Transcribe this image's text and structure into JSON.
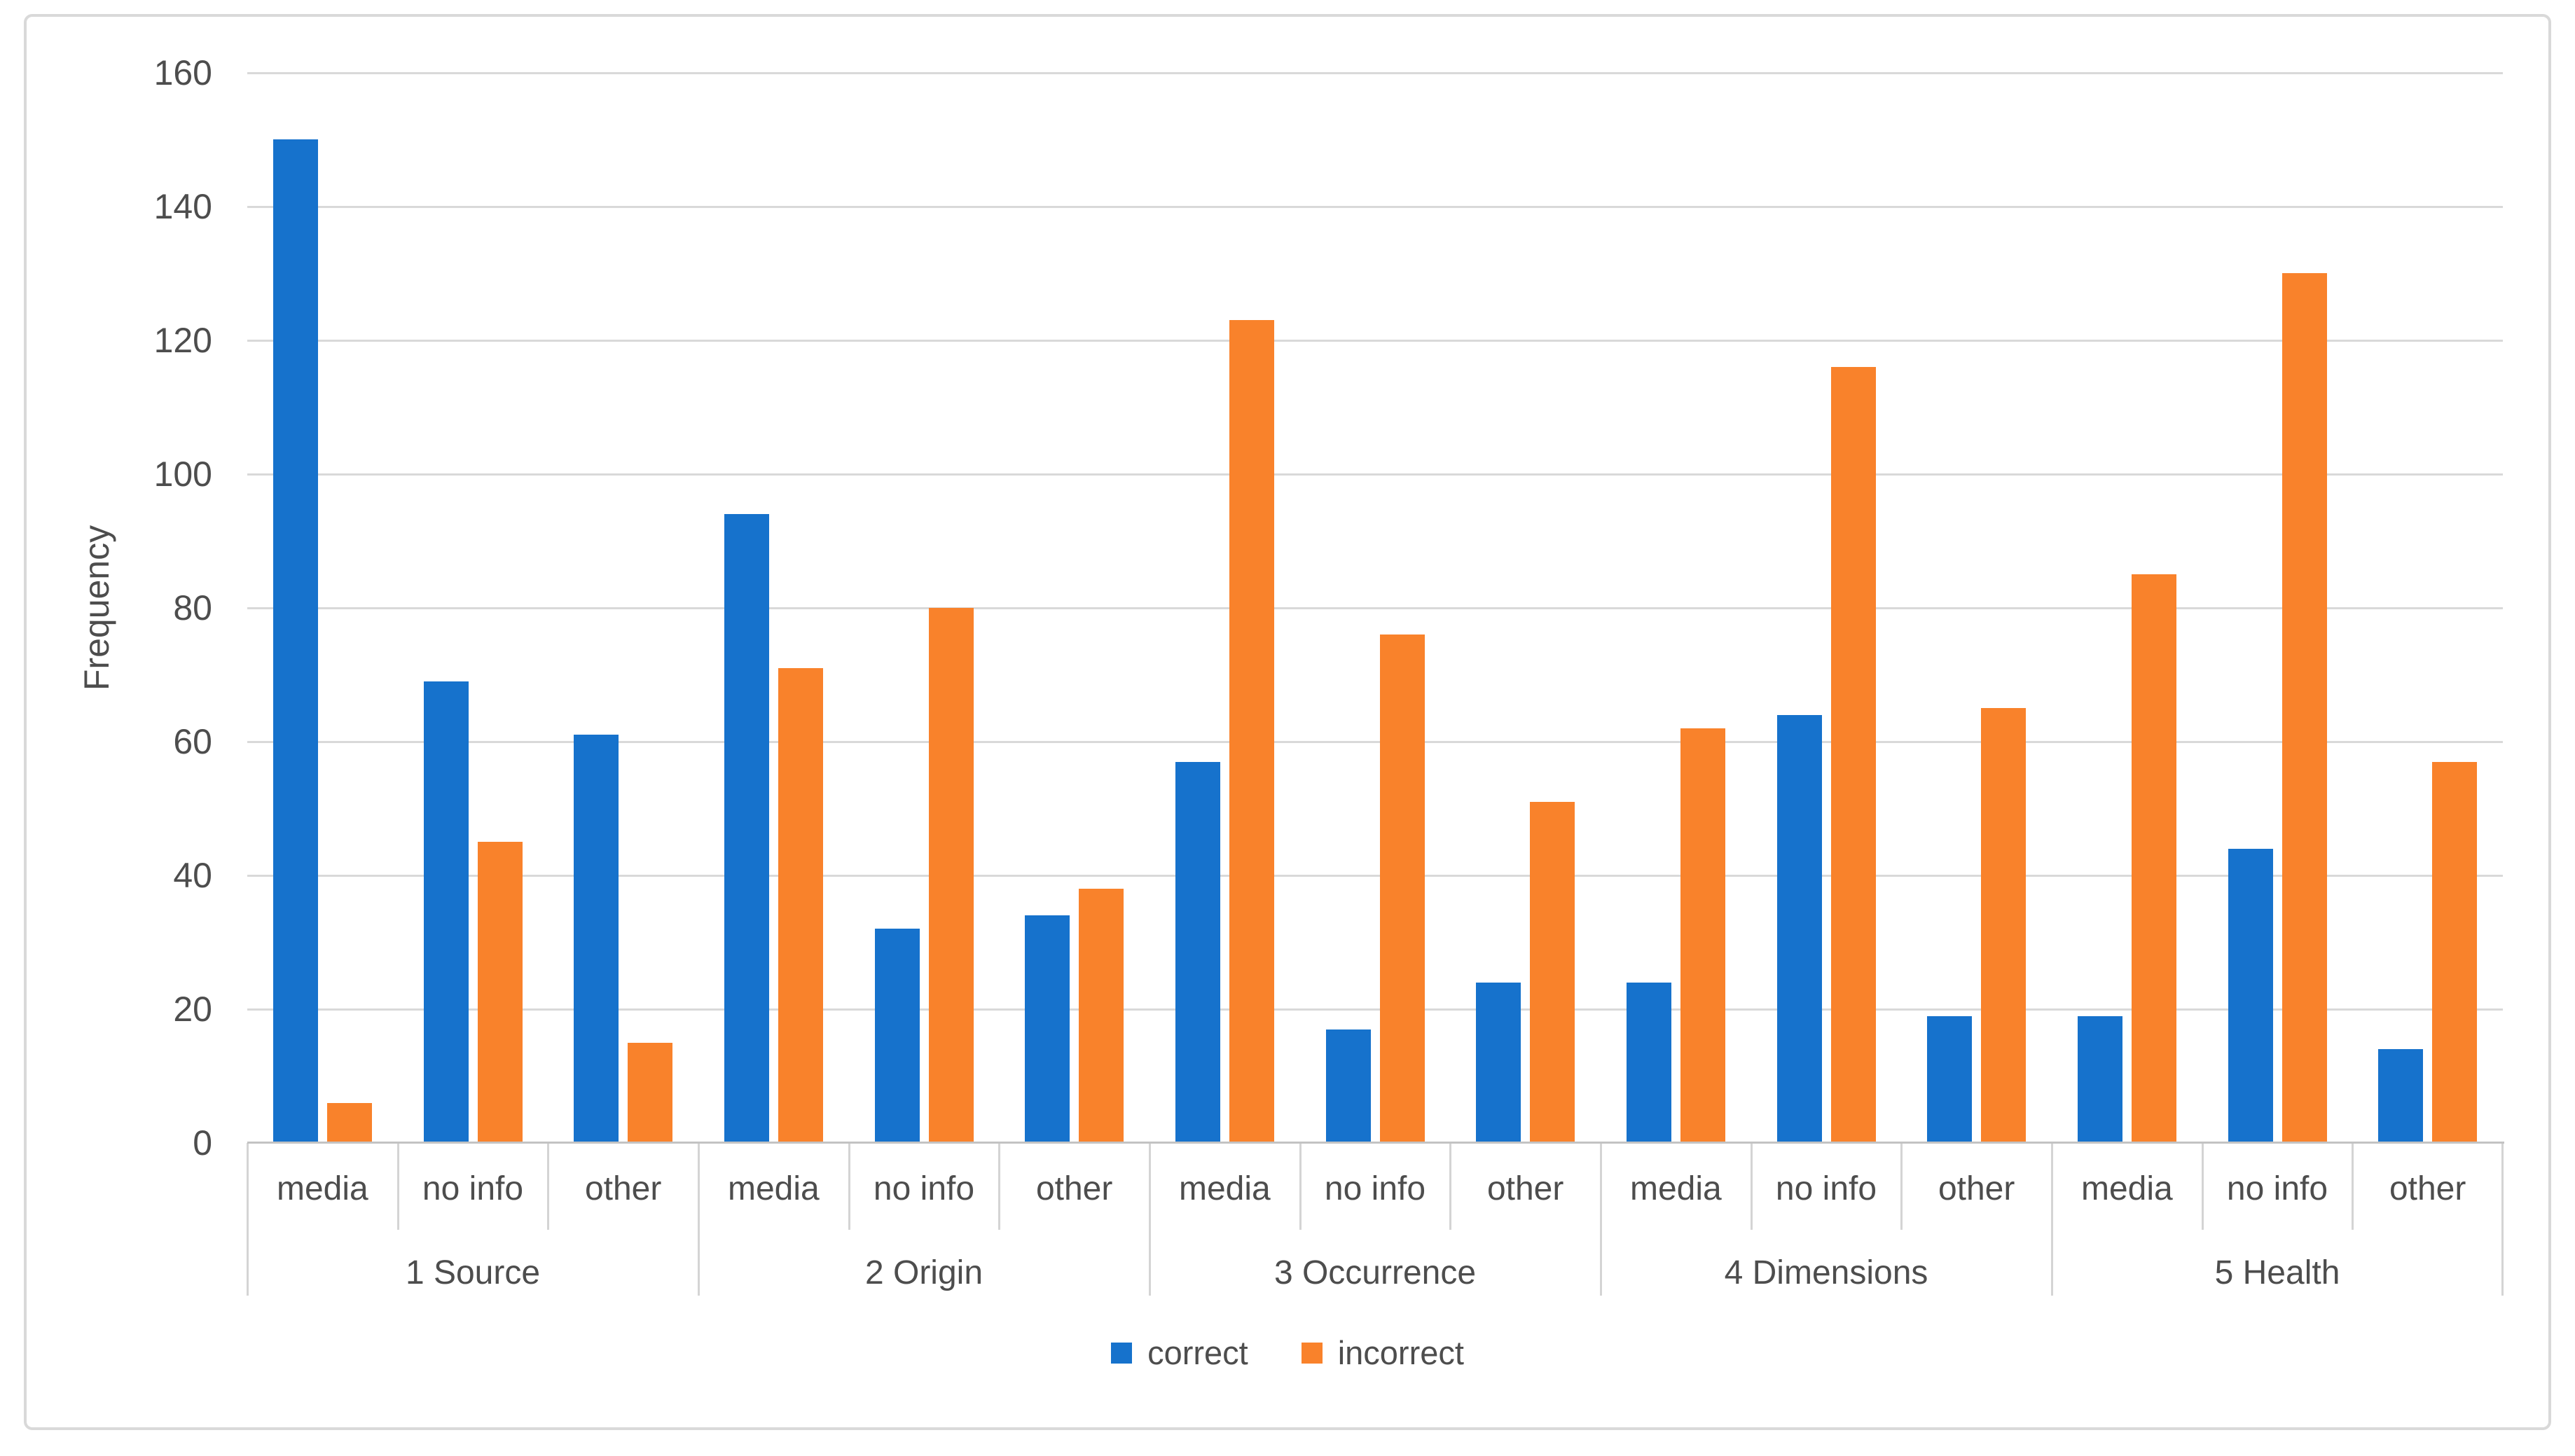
{
  "figure_title": "",
  "axes": {
    "y_title": "Frequency",
    "y_min": 0,
    "y_max": 160,
    "y_tick_step": 20
  },
  "colors": {
    "correct": "#1672CC",
    "incorrect": "#F9822B",
    "gridline": "#D9D9D9",
    "axis_line": "#C3C3C3",
    "text": "#4D4D4D",
    "figure_border": "#D9D9D9"
  },
  "chart_data": {
    "type": "bar",
    "title": "",
    "xlabel": "",
    "ylabel": "Frequency",
    "ylim": [
      0,
      160
    ],
    "y_tick_step": 20,
    "grid": true,
    "legend_position": "bottom",
    "series_names": [
      "correct",
      "incorrect"
    ],
    "series_colors": [
      "#1672CC",
      "#F9822B"
    ],
    "groups": [
      {
        "label": "1 Source",
        "categories": [
          "media",
          "no info",
          "other"
        ],
        "correct": [
          150,
          69,
          61
        ],
        "incorrect": [
          6,
          45,
          15
        ]
      },
      {
        "label": "2 Origin",
        "categories": [
          "media",
          "no info",
          "other"
        ],
        "correct": [
          94,
          32,
          34
        ],
        "incorrect": [
          71,
          80,
          38
        ]
      },
      {
        "label": "3 Occurrence",
        "categories": [
          "media",
          "no info",
          "other"
        ],
        "correct": [
          57,
          17,
          24
        ],
        "incorrect": [
          123,
          76,
          51
        ]
      },
      {
        "label": "4 Dimensions",
        "categories": [
          "media",
          "no info",
          "other"
        ],
        "correct": [
          24,
          64,
          19
        ],
        "incorrect": [
          62,
          116,
          65
        ]
      },
      {
        "label": "5 Health",
        "categories": [
          "media",
          "no info",
          "other"
        ],
        "correct": [
          19,
          44,
          14
        ],
        "incorrect": [
          85,
          130,
          57
        ]
      }
    ]
  }
}
